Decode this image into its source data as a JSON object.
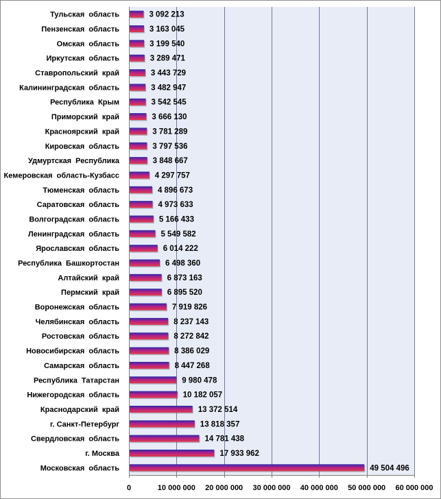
{
  "chart_data": {
    "type": "bar",
    "orientation": "horizontal",
    "categories": [
      "Тульская  область",
      "Пензенская  область",
      "Омская  область",
      "Иркутская  область",
      "Ставропольский  край",
      "Калининградская  область",
      "Республика  Крым",
      "Приморский  край",
      "Красноярский  край",
      "Кировская  область",
      "Удмуртская  Республика",
      "Кемеровская  область-Кузбасс",
      "Тюменская  область",
      "Саратовская  область",
      "Волгоградская  область",
      "Ленинградская  область",
      "Ярославская  область",
      "Республика  Башкортостан",
      "Алтайский  край",
      "Пермский  край",
      "Воронежская  область",
      "Челябинская  область",
      "Ростовская  область",
      "Новосибирская  область",
      "Самарская  область",
      "Республика  Татарстан",
      "Нижегородская  область",
      "Краснодарский  край",
      "г. Санкт-Петербург",
      "Свердловская  область",
      "г. Москва",
      "Московская  область"
    ],
    "values": [
      3092213,
      3163045,
      3199540,
      3289471,
      3443729,
      3482947,
      3542545,
      3666130,
      3781289,
      3797536,
      3848667,
      4297757,
      4896673,
      4973633,
      5166433,
      5549582,
      6014222,
      6498360,
      6873163,
      6895520,
      7919826,
      8237143,
      8272842,
      8386029,
      8447268,
      9980478,
      10182057,
      13372514,
      13818357,
      14781438,
      17933962,
      49504496
    ],
    "value_labels": [
      "3 092 213",
      "3 163 045",
      "3 199 540",
      "3 289 471",
      "3 443 729",
      "3 482 947",
      "3 542 545",
      "3 666 130",
      "3 781 289",
      "3 797 536",
      "3 848 667",
      "4 297 757",
      "4 896 673",
      "4 973 633",
      "5 166 433",
      "5 549 582",
      "6 014 222",
      "6 498 360",
      "6 873 163",
      "6 895 520",
      "7 919 826",
      "8 237 143",
      "8 272 842",
      "8 386 029",
      "8 447 268",
      "9 980 478",
      "10 182 057",
      "13 372 514",
      "13 818 357",
      "14 781 438",
      "17 933 962",
      "49 504 496"
    ],
    "xlim": [
      0,
      60000000
    ],
    "x_ticks": [
      0,
      10000000,
      20000000,
      30000000,
      40000000,
      50000000,
      60000000
    ],
    "x_tick_labels": [
      "0",
      "10 000 000",
      "20 000 000",
      "30 000 000",
      "40 000 000",
      "50 000 000",
      "60 000 000"
    ],
    "grid": true,
    "legend": false,
    "colors": {
      "bar_top": "#2a2aa8",
      "bar_mid": "#b0208a",
      "bar_bottom": "#e03a4a",
      "plot_background": "#e8ecf6",
      "gridline": "#6b7b9a"
    }
  }
}
